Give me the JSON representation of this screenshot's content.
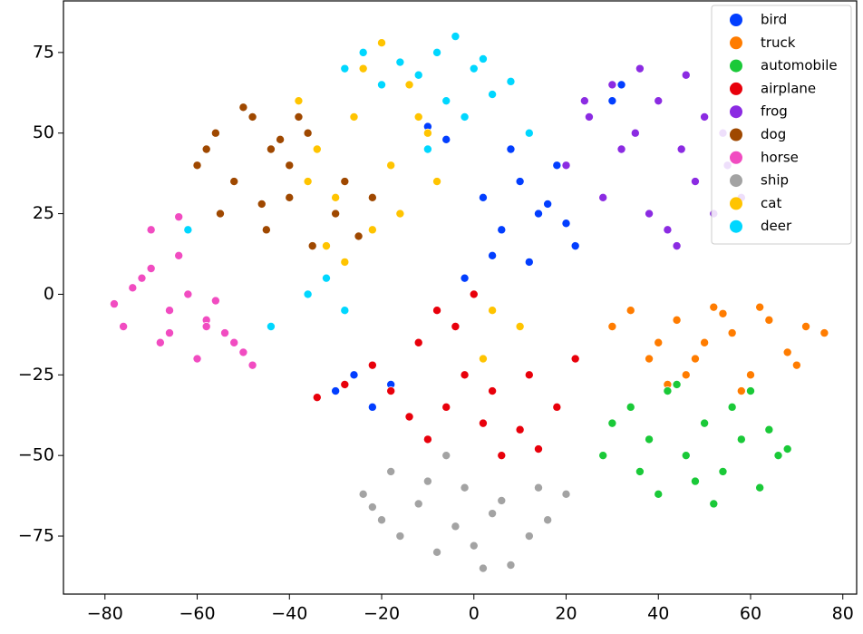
{
  "chart_data": {
    "type": "scatter",
    "xlim": [
      -89,
      83
    ],
    "ylim": [
      -93,
      91
    ],
    "xticks": [
      {
        "value": -80,
        "label": "−80"
      },
      {
        "value": -60,
        "label": "−60"
      },
      {
        "value": -40,
        "label": "−40"
      },
      {
        "value": -20,
        "label": "−20"
      },
      0,
      20,
      40,
      60,
      80
    ],
    "yticks": [
      {
        "value": -75,
        "label": "−75"
      },
      {
        "value": -50,
        "label": "−50"
      },
      {
        "value": -25,
        "label": "−25"
      },
      0,
      25,
      50,
      75
    ],
    "legend": "upper right",
    "series": [
      {
        "name": "bird",
        "color": "#023eff",
        "x": [
          2,
          6,
          10,
          14,
          18,
          22,
          8,
          12,
          16,
          20,
          4,
          -2,
          -6,
          -10,
          -30,
          -26,
          -22,
          -18,
          30,
          32
        ],
        "values": [
          30,
          20,
          35,
          25,
          40,
          15,
          45,
          10,
          28,
          22,
          12,
          5,
          48,
          52,
          -30,
          -25,
          -35,
          -28,
          60,
          65
        ]
      },
      {
        "name": "truck",
        "color": "#ff7c00",
        "x": [
          30,
          34,
          40,
          44,
          48,
          52,
          56,
          60,
          64,
          68,
          72,
          76,
          38,
          46,
          54,
          62,
          70,
          50,
          42,
          58
        ],
        "values": [
          -10,
          -5,
          -15,
          -8,
          -20,
          -4,
          -12,
          -25,
          -8,
          -18,
          -10,
          -12,
          -20,
          -25,
          -6,
          -4,
          -22,
          -15,
          -28,
          -30
        ]
      },
      {
        "name": "automobile",
        "color": "#1ac938",
        "x": [
          30,
          34,
          38,
          42,
          46,
          50,
          54,
          58,
          62,
          66,
          40,
          48,
          56,
          64,
          44,
          52,
          60,
          36,
          28,
          68
        ],
        "values": [
          -40,
          -35,
          -45,
          -30,
          -50,
          -40,
          -55,
          -45,
          -60,
          -50,
          -62,
          -58,
          -35,
          -42,
          -28,
          -65,
          -30,
          -55,
          -50,
          -48
        ]
      },
      {
        "name": "airplane",
        "color": "#e8000b",
        "x": [
          -34,
          -28,
          -22,
          -18,
          -14,
          -10,
          -6,
          -2,
          2,
          6,
          10,
          14,
          18,
          -12,
          -4,
          4,
          12,
          22,
          -8,
          0
        ],
        "values": [
          -32,
          -28,
          -22,
          -30,
          -38,
          -45,
          -35,
          -25,
          -40,
          -50,
          -42,
          -48,
          -35,
          -15,
          -10,
          -30,
          -25,
          -20,
          -5,
          0
        ]
      },
      {
        "name": "frog",
        "color": "#8b2be2",
        "x": [
          20,
          25,
          30,
          35,
          40,
          45,
          50,
          55,
          58,
          28,
          38,
          48,
          42,
          52,
          32,
          24,
          46,
          36,
          54,
          44
        ],
        "values": [
          40,
          55,
          65,
          50,
          60,
          45,
          55,
          40,
          30,
          30,
          25,
          35,
          20,
          25,
          45,
          60,
          68,
          70,
          50,
          15
        ]
      },
      {
        "name": "dog",
        "color": "#9f4800",
        "x": [
          -60,
          -56,
          -52,
          -48,
          -44,
          -40,
          -36,
          -55,
          -50,
          -45,
          -40,
          -35,
          -30,
          -25,
          -22,
          -58,
          -46,
          -38,
          -28,
          -42
        ],
        "values": [
          40,
          50,
          35,
          55,
          45,
          30,
          50,
          25,
          58,
          20,
          40,
          15,
          25,
          18,
          30,
          45,
          28,
          55,
          35,
          48
        ]
      },
      {
        "name": "horse",
        "color": "#f14cc1",
        "x": [
          -78,
          -74,
          -70,
          -66,
          -62,
          -58,
          -54,
          -50,
          -76,
          -72,
          -68,
          -64,
          -60,
          -56,
          -52,
          -48,
          -70,
          -64,
          -58,
          -66
        ],
        "values": [
          -3,
          2,
          8,
          -5,
          0,
          -8,
          -12,
          -18,
          -10,
          5,
          -15,
          12,
          -20,
          -2,
          -15,
          -22,
          20,
          24,
          -10,
          -12
        ]
      },
      {
        "name": "ship",
        "color": "#a3a3a3",
        "x": [
          -24,
          -20,
          -16,
          -12,
          -8,
          -4,
          0,
          4,
          8,
          12,
          16,
          -18,
          -10,
          -2,
          6,
          14,
          2,
          -6,
          20,
          -22
        ],
        "values": [
          -62,
          -70,
          -75,
          -65,
          -80,
          -72,
          -78,
          -68,
          -84,
          -75,
          -70,
          -55,
          -58,
          -60,
          -64,
          -60,
          -85,
          -50,
          -62,
          -66
        ]
      },
      {
        "name": "cat",
        "color": "#ffc400",
        "x": [
          -38,
          -34,
          -30,
          -26,
          -22,
          -18,
          -14,
          -10,
          -32,
          -24,
          -16,
          -8,
          -20,
          -28,
          -4,
          4,
          10,
          -12,
          -36,
          2
        ],
        "values": [
          60,
          45,
          30,
          55,
          20,
          40,
          65,
          50,
          15,
          70,
          25,
          35,
          78,
          10,
          80,
          -5,
          -10,
          55,
          35,
          -20
        ]
      },
      {
        "name": "deer",
        "color": "#00d7ff",
        "x": [
          -28,
          -24,
          -20,
          -16,
          -12,
          -8,
          -4,
          0,
          4,
          8,
          -6,
          -2,
          2,
          -36,
          -32,
          -28,
          -44,
          -62,
          -10,
          12
        ],
        "values": [
          70,
          75,
          65,
          72,
          68,
          75,
          80,
          70,
          62,
          66,
          60,
          55,
          73,
          0,
          5,
          -5,
          -10,
          20,
          45,
          50
        ]
      }
    ]
  }
}
